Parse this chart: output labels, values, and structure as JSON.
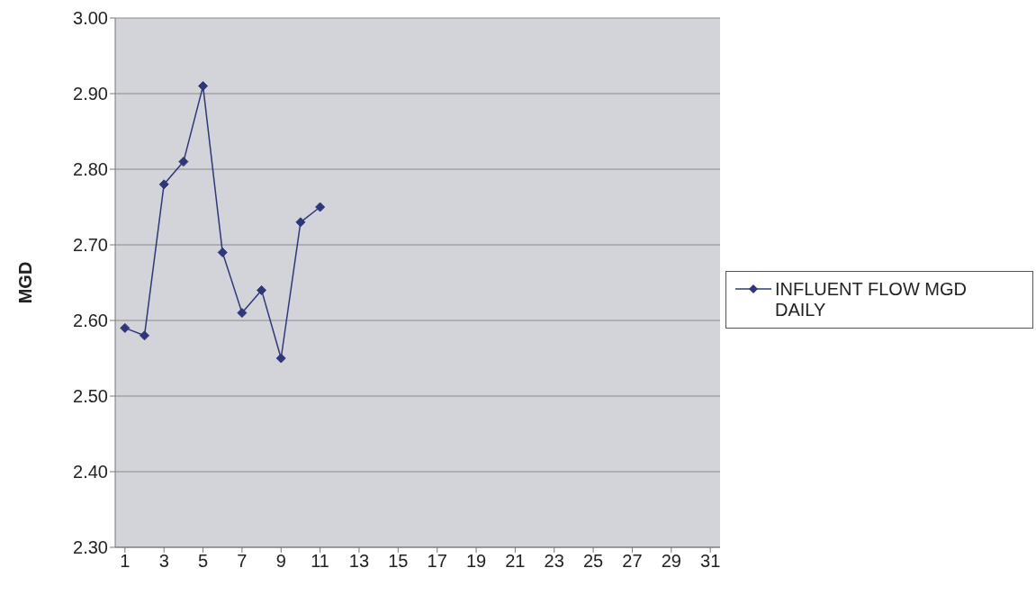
{
  "chart_data": {
    "type": "line",
    "ylabel": "MGD",
    "x": [
      1,
      2,
      3,
      4,
      5,
      6,
      7,
      8,
      9,
      10,
      11
    ],
    "xlim": [
      0.5,
      31.5
    ],
    "xticks": [
      1,
      3,
      5,
      7,
      9,
      11,
      13,
      15,
      17,
      19,
      21,
      23,
      25,
      27,
      29,
      31
    ],
    "series": [
      {
        "name": "INFLUENT FLOW MGD DAILY",
        "color": "#2e3878",
        "values": [
          2.59,
          2.58,
          2.78,
          2.81,
          2.91,
          2.69,
          2.61,
          2.64,
          2.55,
          2.73,
          2.75
        ]
      }
    ],
    "ylim": [
      2.3,
      3.0
    ],
    "yticks": [
      {
        "value": 2.3,
        "label": "2.30"
      },
      {
        "value": 2.4,
        "label": "2.40"
      },
      {
        "value": 2.5,
        "label": "2.50"
      },
      {
        "value": 2.6,
        "label": "2.60"
      },
      {
        "value": 2.7,
        "label": "2.70"
      },
      {
        "value": 2.8,
        "label": "2.80"
      },
      {
        "value": 2.9,
        "label": "2.90"
      },
      {
        "value": 3.0,
        "label": "3.00"
      }
    ],
    "grid": "y",
    "legend": "right",
    "marker": "diamond",
    "line_style": "solid"
  }
}
